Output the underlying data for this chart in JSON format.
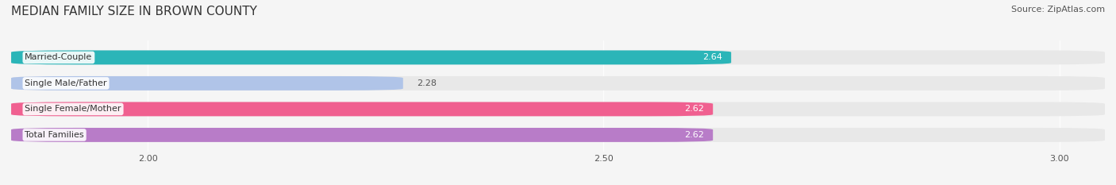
{
  "title": "MEDIAN FAMILY SIZE IN BROWN COUNTY",
  "source": "Source: ZipAtlas.com",
  "categories": [
    "Married-Couple",
    "Single Male/Father",
    "Single Female/Mother",
    "Total Families"
  ],
  "values": [
    2.64,
    2.28,
    2.62,
    2.62
  ],
  "bar_colors": [
    "#2bb5b8",
    "#b0c4e8",
    "#f06090",
    "#b87cc8"
  ],
  "bar_bg_color": "#e8e8e8",
  "xlim": [
    1.85,
    3.05
  ],
  "xticks": [
    2.0,
    2.5,
    3.0
  ],
  "xtick_labels": [
    "2.00",
    "2.50",
    "3.00"
  ],
  "label_color_inside": "#ffffff",
  "label_color_outside": "#555555",
  "bar_height": 0.55,
  "bg_color": "#f5f5f5",
  "title_fontsize": 11,
  "source_fontsize": 8,
  "label_fontsize": 8,
  "category_fontsize": 8,
  "tick_fontsize": 8
}
